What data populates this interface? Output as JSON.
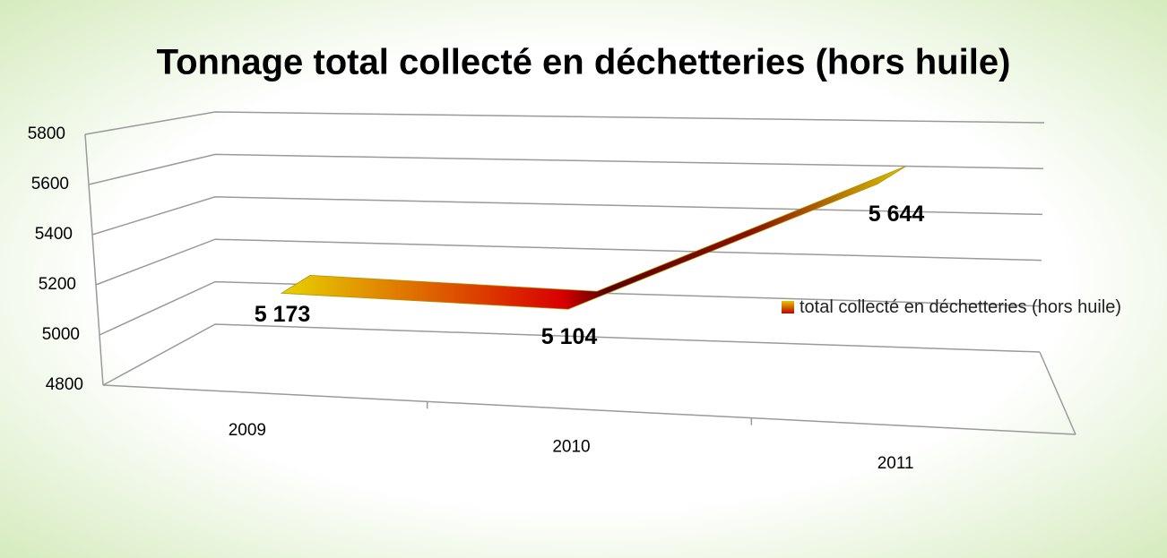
{
  "chart_data": {
    "type": "line3d",
    "title": "Tonnage total collecté en déchetteries (hors huile)",
    "categories": [
      "2009",
      "2010",
      "2011"
    ],
    "series": [
      {
        "name": "total collecté en déchetteries (hors huile)",
        "color": "#c00000",
        "values": [
          5173,
          5104,
          5644
        ],
        "value_labels": [
          "5 173",
          "5 104",
          "5 644"
        ]
      }
    ],
    "ylim": [
      4800,
      5800
    ],
    "yticks": [
      4800,
      5000,
      5200,
      5400,
      5600,
      5800
    ],
    "grid": true,
    "legend": "right"
  }
}
